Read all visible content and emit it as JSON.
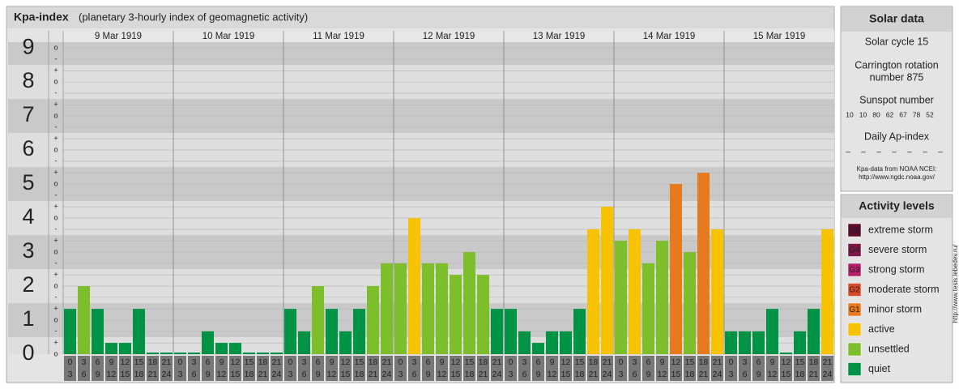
{
  "chart_data": {
    "type": "bar",
    "title": "Kpa-index",
    "subtitle": "(planetary 3-hourly index of geomagnetic activity)",
    "ylim": [
      0,
      9.17
    ],
    "yticks": [
      0,
      1,
      2,
      3,
      4,
      5,
      6,
      7,
      8,
      9
    ],
    "minor_ticks": [
      {
        "value": 0,
        "label": "o"
      },
      {
        "value": 0.33,
        "label": "+"
      },
      {
        "value": 0.67,
        "label": "-"
      },
      {
        "value": 1,
        "label": "o"
      },
      {
        "value": 1.33,
        "label": "+"
      },
      {
        "value": 1.67,
        "label": "-"
      },
      {
        "value": 2,
        "label": "o"
      },
      {
        "value": 2.33,
        "label": "+"
      },
      {
        "value": 2.67,
        "label": "-"
      },
      {
        "value": 3,
        "label": "o"
      },
      {
        "value": 3.33,
        "label": "+"
      },
      {
        "value": 3.67,
        "label": "-"
      },
      {
        "value": 4,
        "label": "o"
      },
      {
        "value": 4.33,
        "label": "+"
      },
      {
        "value": 4.67,
        "label": "-"
      },
      {
        "value": 5,
        "label": "o"
      },
      {
        "value": 5.33,
        "label": "+"
      },
      {
        "value": 5.67,
        "label": "-"
      },
      {
        "value": 6,
        "label": "o"
      },
      {
        "value": 6.33,
        "label": "+"
      },
      {
        "value": 6.67,
        "label": "-"
      },
      {
        "value": 7,
        "label": "o"
      },
      {
        "value": 7.33,
        "label": "+"
      },
      {
        "value": 7.67,
        "label": "-"
      },
      {
        "value": 8,
        "label": "o"
      },
      {
        "value": 8.33,
        "label": "+"
      },
      {
        "value": 8.67,
        "label": "-"
      },
      {
        "value": 9,
        "label": "o"
      }
    ],
    "hours": [
      [
        "0",
        "3"
      ],
      [
        "3",
        "6"
      ],
      [
        "6",
        "9"
      ],
      [
        "9",
        "12"
      ],
      [
        "12",
        "15"
      ],
      [
        "15",
        "18"
      ],
      [
        "18",
        "21"
      ],
      [
        "21",
        "24"
      ]
    ],
    "days": [
      {
        "date": "9 Mar 1919",
        "values": [
          1.33,
          2,
          1.33,
          0.33,
          0.33,
          1.33,
          0,
          0
        ],
        "colors": [
          "#009245",
          "#7cbf2a",
          "#009245",
          "#009245",
          "#009245",
          "#009245",
          "#009245",
          "#009245"
        ]
      },
      {
        "date": "10 Mar 1919",
        "values": [
          0,
          0,
          0.67,
          0.33,
          0.33,
          0,
          0,
          0
        ],
        "colors": [
          "#009245",
          "#009245",
          "#009245",
          "#009245",
          "#009245",
          "#009245",
          "#009245",
          "#009245"
        ]
      },
      {
        "date": "11 Mar 1919",
        "values": [
          1.33,
          0.67,
          2,
          1.33,
          0.67,
          1.33,
          2,
          2.67
        ],
        "colors": [
          "#009245",
          "#009245",
          "#7cbf2a",
          "#009245",
          "#009245",
          "#009245",
          "#7cbf2a",
          "#7cbf2a"
        ]
      },
      {
        "date": "12 Mar 1919",
        "values": [
          2.67,
          4,
          2.67,
          2.67,
          2.33,
          3,
          2.33,
          1.33
        ],
        "colors": [
          "#7cbf2a",
          "#f7c200",
          "#7cbf2a",
          "#7cbf2a",
          "#7cbf2a",
          "#7cbf2a",
          "#7cbf2a",
          "#009245"
        ]
      },
      {
        "date": "13 Mar 1919",
        "values": [
          1.33,
          0.67,
          0.33,
          0.67,
          0.67,
          1.33,
          3.67,
          4.33
        ],
        "colors": [
          "#009245",
          "#009245",
          "#009245",
          "#009245",
          "#009245",
          "#009245",
          "#f7c200",
          "#f7c200"
        ]
      },
      {
        "date": "14 Mar 1919",
        "values": [
          3.33,
          3.67,
          2.67,
          3.33,
          5,
          3,
          5.33,
          3.67
        ],
        "colors": [
          "#7cbf2a",
          "#f7c200",
          "#7cbf2a",
          "#7cbf2a",
          "#e87a1e",
          "#7cbf2a",
          "#e87a1e",
          "#f7c200"
        ]
      },
      {
        "date": "15 Mar 1919",
        "values": [
          0.67,
          0.67,
          0.67,
          1.33,
          0,
          0.67,
          1.33,
          3.67
        ],
        "colors": [
          "#009245",
          "#009245",
          "#009245",
          "#009245",
          "#009245",
          "#009245",
          "#009245",
          "#f7c200"
        ]
      }
    ]
  },
  "solar_data": {
    "title": "Solar data",
    "cycle": "Solar cycle 15",
    "carrington": [
      "Carrington rotation",
      "number 875"
    ],
    "sunspot_title": "Sunspot number",
    "sunspot": [
      10,
      10,
      80,
      62,
      67,
      78,
      52
    ],
    "ap_title": "Daily Ap-index",
    "ap": [
      "–",
      "–",
      "–",
      "–",
      "–",
      "–",
      "–"
    ],
    "source": "Kpa-data from NOAA NCEI:",
    "source_url": "http://www.ngdc.noaa.gov/"
  },
  "activity_levels": {
    "title": "Activity levels",
    "items": [
      {
        "code": "G5",
        "name": "extreme storm",
        "color": "#5c0a2e"
      },
      {
        "code": "G4",
        "name": "severe storm",
        "color": "#7a1846"
      },
      {
        "code": "G3",
        "name": "strong storm",
        "color": "#b5206a"
      },
      {
        "code": "G2",
        "name": "moderate storm",
        "color": "#d94a2a"
      },
      {
        "code": "G1",
        "name": "minor storm",
        "color": "#e87a1e"
      },
      {
        "name": "active",
        "color": "#f7c200"
      },
      {
        "name": "unsettled",
        "color": "#7cbf2a"
      },
      {
        "name": "quiet",
        "color": "#009245"
      }
    ]
  },
  "watermark": "http://www.tesis.lebedev.ru/"
}
